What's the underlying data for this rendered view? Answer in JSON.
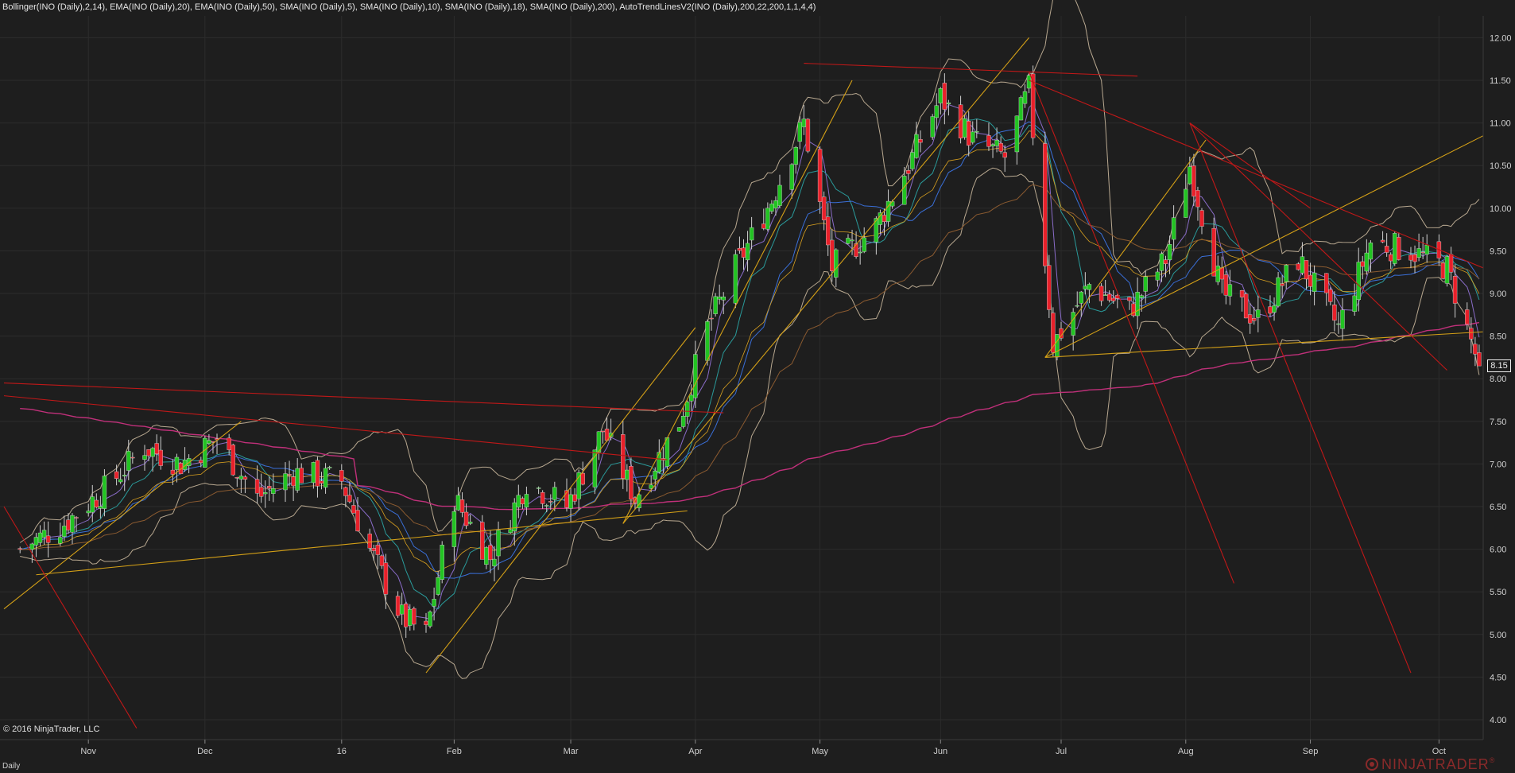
{
  "header": {
    "indicators": "Bollinger(INO (Daily),2,14), EMA(INO (Daily),20), EMA(INO (Daily),50), SMA(INO (Daily),5), SMA(INO (Daily),10), SMA(INO (Daily),18), SMA(INO (Daily),200), AutoTrendLinesV2(INO (Daily),200,22,200,1,1,4,4)"
  },
  "footer": {
    "copyright": "© 2016 NinjaTrader, LLC",
    "period": "Daily",
    "brand": "NINJATRADER",
    "brand_mark": "®"
  },
  "current_price": "8.15",
  "colors": {
    "background": "#1e1e1e",
    "up_candle": "#22c322",
    "down_candle": "#e8202a",
    "trendline_support": "#d4a017",
    "trendline_resistance": "#c01818",
    "bollinger": "#b8a890",
    "sma200": "#c0307a"
  },
  "chart_data": {
    "type": "candlestick",
    "symbol": "INO",
    "timeframe": "Daily",
    "x_tick_labels": [
      "Nov",
      "Dec",
      "16",
      "Feb",
      "Mar",
      "Apr",
      "May",
      "Jun",
      "Jul",
      "Aug",
      "Sep",
      "Oct"
    ],
    "y_tick_labels": [
      "4.00",
      "4.50",
      "5.00",
      "5.50",
      "6.00",
      "6.50",
      "7.00",
      "7.50",
      "8.00",
      "8.50",
      "9.00",
      "9.50",
      "10.00",
      "10.50",
      "11.00",
      "11.50",
      "12.00"
    ],
    "ylim": [
      3.8,
      12.2
    ],
    "grid": true,
    "last_price": 8.15,
    "approx_close_path": [
      {
        "date": "2015-10-16",
        "close": 6.0
      },
      {
        "date": "2015-10-27",
        "close": 6.3
      },
      {
        "date": "2015-11-06",
        "close": 6.7
      },
      {
        "date": "2015-11-16",
        "close": 7.2
      },
      {
        "date": "2015-11-25",
        "close": 7.0
      },
      {
        "date": "2015-12-04",
        "close": 7.3
      },
      {
        "date": "2015-12-14",
        "close": 6.6
      },
      {
        "date": "2015-12-23",
        "close": 6.9
      },
      {
        "date": "2016-01-04",
        "close": 6.8
      },
      {
        "date": "2016-01-11",
        "close": 6.0
      },
      {
        "date": "2016-01-19",
        "close": 5.2
      },
      {
        "date": "2016-01-25",
        "close": 5.0
      },
      {
        "date": "2016-02-01",
        "close": 6.6
      },
      {
        "date": "2016-02-10",
        "close": 5.9
      },
      {
        "date": "2016-02-19",
        "close": 6.8
      },
      {
        "date": "2016-02-29",
        "close": 6.5
      },
      {
        "date": "2016-03-09",
        "close": 7.4
      },
      {
        "date": "2016-03-17",
        "close": 6.6
      },
      {
        "date": "2016-03-28",
        "close": 7.5
      },
      {
        "date": "2016-04-04",
        "close": 8.6
      },
      {
        "date": "2016-04-11",
        "close": 9.3
      },
      {
        "date": "2016-04-20",
        "close": 10.1
      },
      {
        "date": "2016-04-28",
        "close": 11.0
      },
      {
        "date": "2016-05-05",
        "close": 9.3
      },
      {
        "date": "2016-05-16",
        "close": 9.8
      },
      {
        "date": "2016-05-24",
        "close": 10.5
      },
      {
        "date": "2016-06-01",
        "close": 11.3
      },
      {
        "date": "2016-06-09",
        "close": 10.8
      },
      {
        "date": "2016-06-17",
        "close": 10.6
      },
      {
        "date": "2016-06-23",
        "close": 11.4
      },
      {
        "date": "2016-06-29",
        "close": 8.4
      },
      {
        "date": "2016-07-08",
        "close": 9.1
      },
      {
        "date": "2016-07-18",
        "close": 8.8
      },
      {
        "date": "2016-07-27",
        "close": 9.4
      },
      {
        "date": "2016-08-02",
        "close": 10.5
      },
      {
        "date": "2016-08-10",
        "close": 9.0
      },
      {
        "date": "2016-08-19",
        "close": 8.7
      },
      {
        "date": "2016-08-29",
        "close": 9.4
      },
      {
        "date": "2016-09-08",
        "close": 8.6
      },
      {
        "date": "2016-09-16",
        "close": 9.6
      },
      {
        "date": "2016-09-26",
        "close": 9.5
      },
      {
        "date": "2016-10-05",
        "close": 9.3
      },
      {
        "date": "2016-10-13",
        "close": 8.15
      }
    ]
  }
}
